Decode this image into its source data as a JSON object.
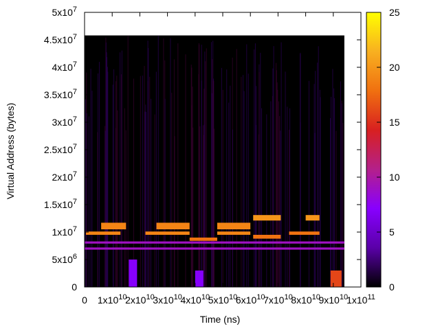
{
  "chart_data": {
    "type": "heatmap",
    "title": "",
    "xlabel": "Time (ns)",
    "ylabel": "Virtual Address (bytes)",
    "xlim": [
      0,
      100000000000
    ],
    "ylim": [
      0,
      50000000
    ],
    "data_extent": {
      "x": [
        0,
        94000000000
      ],
      "y": [
        0,
        45800000
      ]
    },
    "x_ticks": [
      {
        "value": 0,
        "mantissa": "0",
        "exp": ""
      },
      {
        "value": 10000000000,
        "mantissa": "1x10",
        "exp": "10"
      },
      {
        "value": 20000000000,
        "mantissa": "2x10",
        "exp": "10"
      },
      {
        "value": 30000000000,
        "mantissa": "3x10",
        "exp": "10"
      },
      {
        "value": 40000000000,
        "mantissa": "4x10",
        "exp": "10"
      },
      {
        "value": 50000000000,
        "mantissa": "5x10",
        "exp": "10"
      },
      {
        "value": 60000000000,
        "mantissa": "6x10",
        "exp": "10"
      },
      {
        "value": 70000000000,
        "mantissa": "7x10",
        "exp": "10"
      },
      {
        "value": 80000000000,
        "mantissa": "8x10",
        "exp": "10"
      },
      {
        "value": 90000000000,
        "mantissa": "9x10",
        "exp": "10"
      },
      {
        "value": 100000000000,
        "mantissa": "1x10",
        "exp": "11"
      }
    ],
    "y_ticks": [
      {
        "value": 0,
        "mantissa": "0",
        "exp": ""
      },
      {
        "value": 5000000,
        "mantissa": "5x10",
        "exp": "6"
      },
      {
        "value": 10000000,
        "mantissa": "1x10",
        "exp": "7"
      },
      {
        "value": 15000000,
        "mantissa": "1.5x10",
        "exp": "7"
      },
      {
        "value": 20000000,
        "mantissa": "2x10",
        "exp": "7"
      },
      {
        "value": 25000000,
        "mantissa": "2.5x10",
        "exp": "7"
      },
      {
        "value": 30000000,
        "mantissa": "3x10",
        "exp": "7"
      },
      {
        "value": 35000000,
        "mantissa": "3.5x10",
        "exp": "7"
      },
      {
        "value": 40000000,
        "mantissa": "4x10",
        "exp": "7"
      },
      {
        "value": 45000000,
        "mantissa": "4.5x10",
        "exp": "7"
      },
      {
        "value": 50000000,
        "mantissa": "5x10",
        "exp": "7"
      }
    ],
    "colorbar": {
      "range": [
        0,
        25
      ],
      "ticks": [
        "0",
        "5",
        "10",
        "15",
        "20",
        "25"
      ],
      "palette": [
        "#000000",
        "#5a00a8",
        "#8800ff",
        "#b4208a",
        "#d82020",
        "#f07010",
        "#f8b020",
        "#ffff00"
      ]
    },
    "regions": [
      {
        "x": [
          0,
          94000000000
        ],
        "y": [
          6800000,
          7200000
        ],
        "value": 9
      },
      {
        "x": [
          0,
          94000000000
        ],
        "y": [
          7900000,
          8300000
        ],
        "value": 9
      },
      {
        "x": [
          500000000,
          13000000000
        ],
        "y": [
          9500000,
          10100000
        ],
        "value": 19
      },
      {
        "x": [
          6000000000,
          15000000000
        ],
        "y": [
          10500000,
          11700000
        ],
        "value": 19
      },
      {
        "x": [
          22000000000,
          38000000000
        ],
        "y": [
          9500000,
          10100000
        ],
        "value": 19
      },
      {
        "x": [
          26000000000,
          38000000000
        ],
        "y": [
          10500000,
          11700000
        ],
        "value": 19
      },
      {
        "x": [
          38000000000,
          48000000000
        ],
        "y": [
          8400000,
          9000000
        ],
        "value": 18
      },
      {
        "x": [
          48000000000,
          60000000000
        ],
        "y": [
          9500000,
          10100000
        ],
        "value": 19
      },
      {
        "x": [
          48000000000,
          60000000000
        ],
        "y": [
          10500000,
          11700000
        ],
        "value": 19
      },
      {
        "x": [
          61000000000,
          71000000000
        ],
        "y": [
          12100000,
          13100000
        ],
        "value": 20
      },
      {
        "x": [
          61000000000,
          71000000000
        ],
        "y": [
          8800000,
          9500000
        ],
        "value": 18
      },
      {
        "x": [
          74000000000,
          85000000000
        ],
        "y": [
          9500000,
          10100000
        ],
        "value": 18
      },
      {
        "x": [
          80000000000,
          85000000000
        ],
        "y": [
          12100000,
          13100000
        ],
        "value": 20
      },
      {
        "x": [
          16000000000,
          19000000000
        ],
        "y": [
          0,
          5000000
        ],
        "value": 7
      },
      {
        "x": [
          40000000000,
          43000000000
        ],
        "y": [
          0,
          3000000
        ],
        "value": 7
      },
      {
        "x": [
          89000000000,
          93000000000
        ],
        "y": [
          0,
          3000000
        ],
        "value": 16
      }
    ]
  }
}
